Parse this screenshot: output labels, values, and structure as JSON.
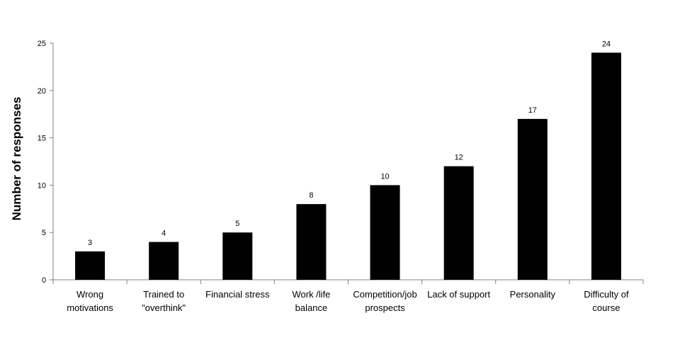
{
  "chart_data": {
    "type": "bar",
    "categories": [
      [
        "Wrong",
        "motivations"
      ],
      [
        "Trained to",
        "\"overthink\""
      ],
      [
        "Financial stress"
      ],
      [
        "Work /life",
        "balance"
      ],
      [
        "Competition/job",
        "prospects"
      ],
      [
        "Lack of support"
      ],
      [
        "Personality"
      ],
      [
        "Difficulty of",
        "course"
      ]
    ],
    "values": [
      3,
      4,
      5,
      8,
      10,
      12,
      17,
      24
    ],
    "data_labels": [
      "3",
      "4",
      "5",
      "8",
      "10",
      "12",
      "17",
      "24"
    ],
    "title": "",
    "xlabel": "",
    "ylabel": "Number of responses",
    "ylim": [
      0,
      25
    ],
    "yticks": [
      0,
      5,
      10,
      15,
      20,
      25
    ],
    "grid": false,
    "legend": "none",
    "bar_color": "#000000"
  }
}
